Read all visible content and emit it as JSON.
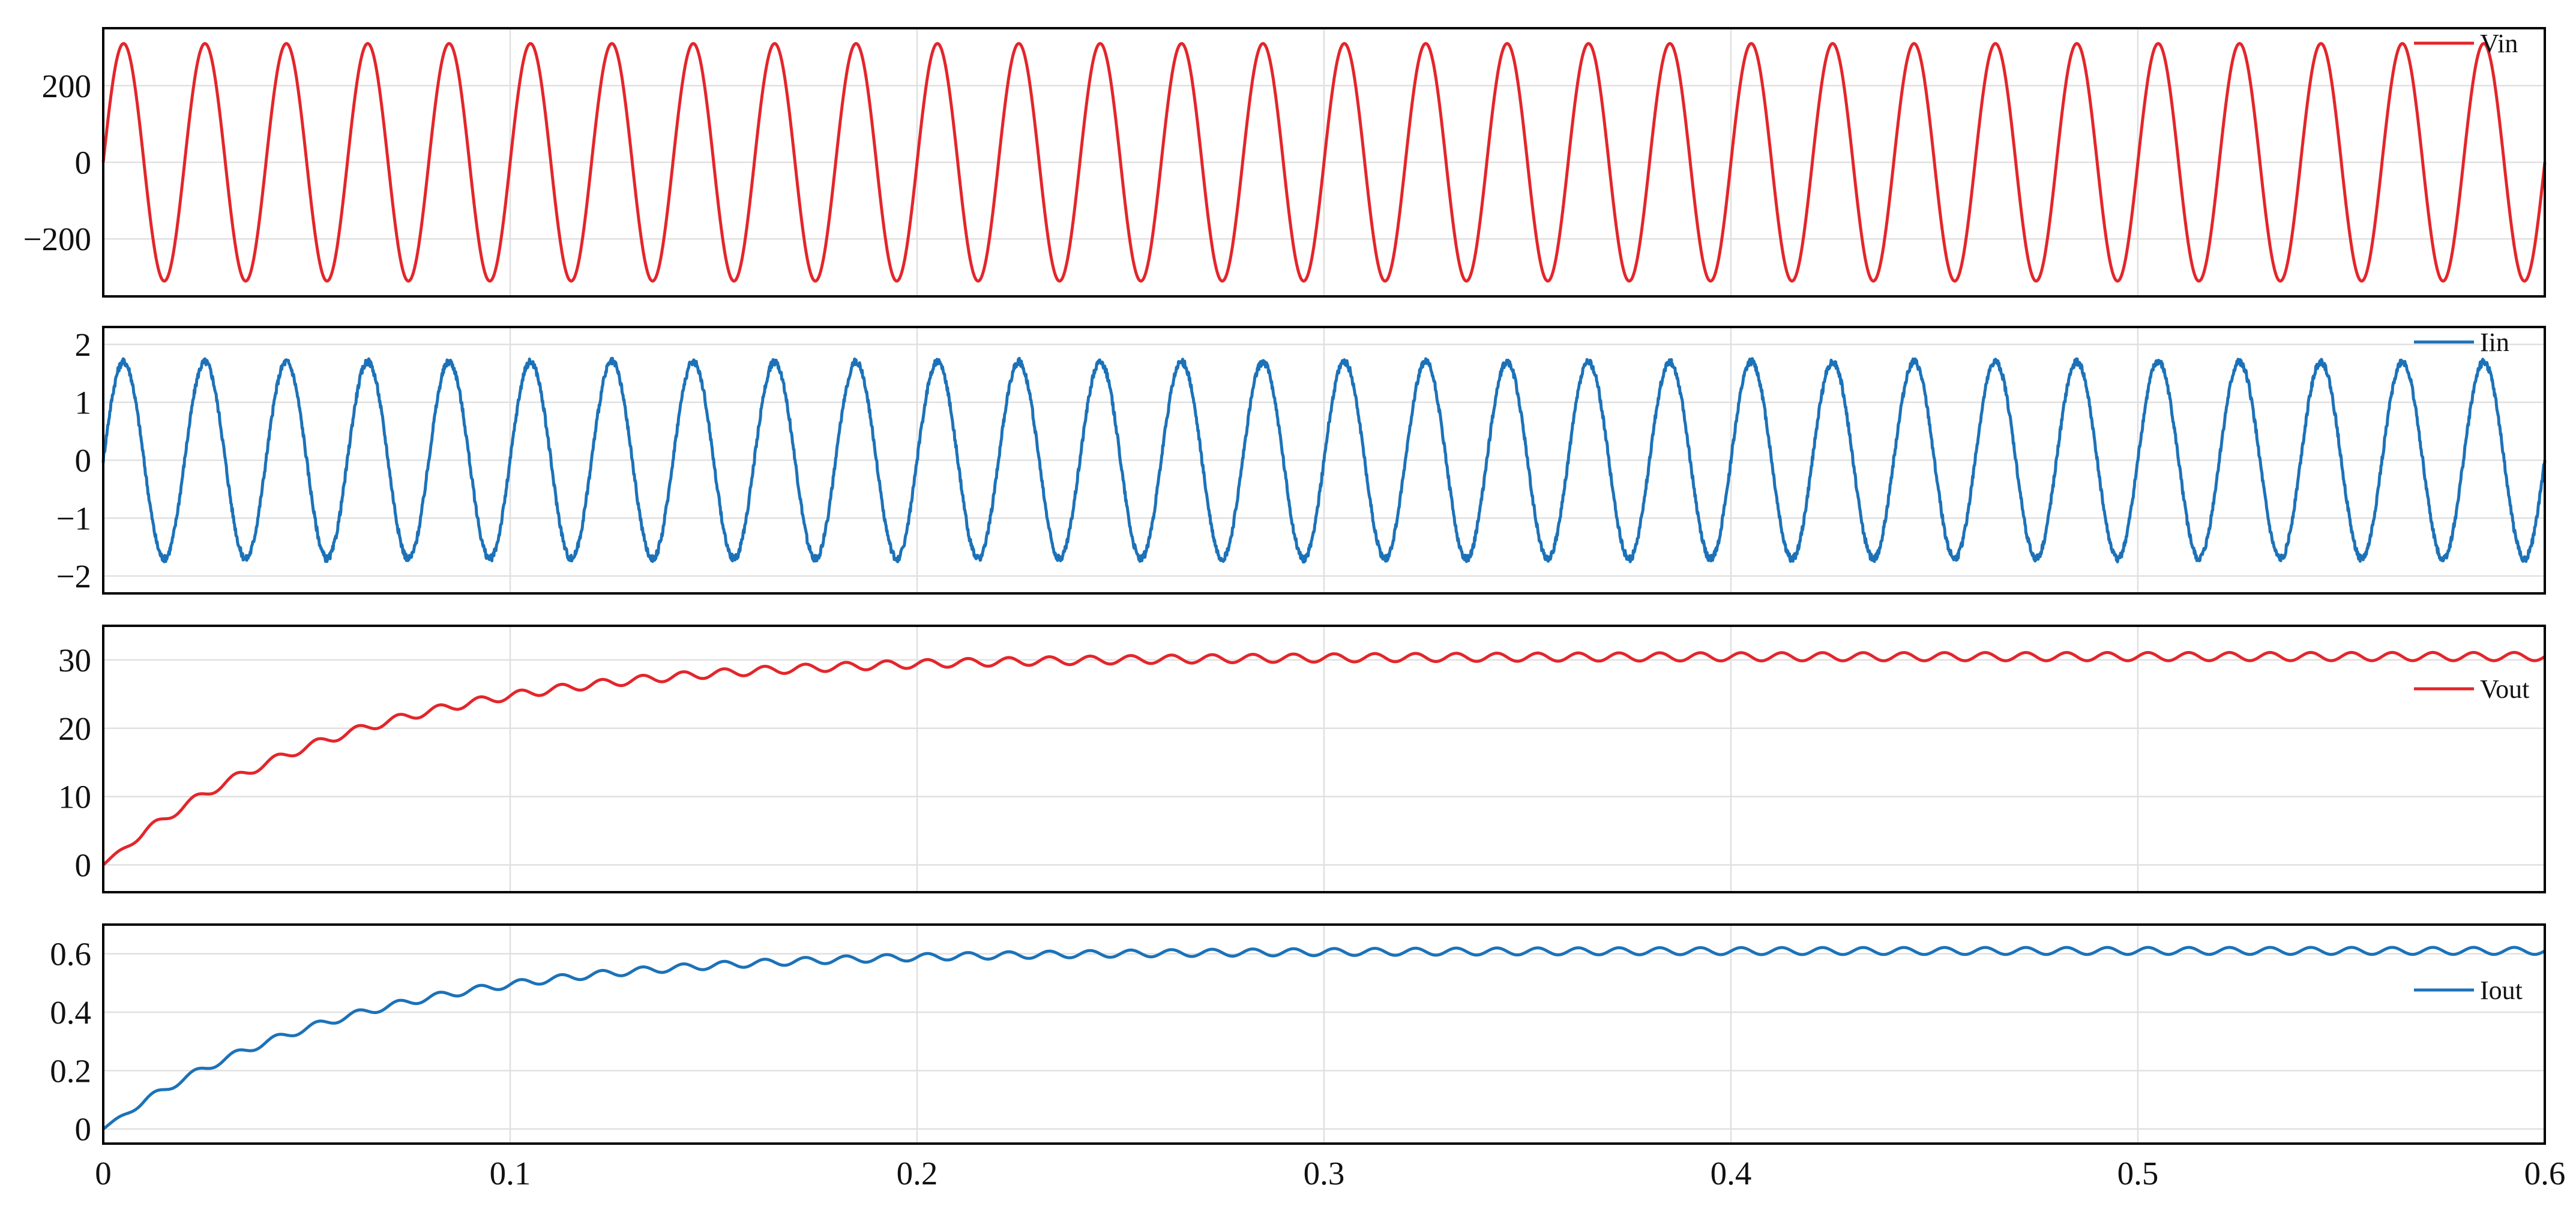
{
  "chart_data": [
    {
      "type": "line",
      "series": [
        {
          "name": "Vin",
          "color": "#e3262b",
          "shape": "sine",
          "amplitude": 310,
          "offset": 0,
          "frequency_hz": 50,
          "noise": 0
        }
      ],
      "xlim": [
        0,
        0.6
      ],
      "ylim": [
        -350,
        350
      ],
      "yticks": [
        200,
        0,
        -200
      ],
      "ytick_labels": [
        "200",
        "0",
        "−200"
      ],
      "legend": "top-right",
      "grid": true
    },
    {
      "type": "line",
      "series": [
        {
          "name": "Iin",
          "color": "#1c72b8",
          "shape": "sine",
          "amplitude": 1.7,
          "offset": 0,
          "frequency_hz": 50,
          "noise": 0.06
        }
      ],
      "xlim": [
        0,
        0.6
      ],
      "ylim": [
        -2.3,
        2.3
      ],
      "yticks": [
        2,
        1,
        0,
        -1,
        -2
      ],
      "ytick_labels": [
        "2",
        "1",
        "0",
        "−1",
        "−2"
      ],
      "legend": "top-right",
      "grid": true
    },
    {
      "type": "line",
      "series": [
        {
          "name": "Vout",
          "color": "#e3262b",
          "shape": "charging",
          "final_value": 30.5,
          "time_constant_s": 0.06,
          "ripple_amplitude": 0.6,
          "ripple_frequency_hz": 100
        }
      ],
      "xlim": [
        0,
        0.6
      ],
      "ylim": [
        -4,
        35
      ],
      "yticks": [
        30,
        20,
        10,
        0
      ],
      "ytick_labels": [
        "30",
        "20",
        "10",
        "0"
      ],
      "legend": "right",
      "grid": true
    },
    {
      "type": "line",
      "series": [
        {
          "name": "Iout",
          "color": "#1c72b8",
          "shape": "charging",
          "final_value": 0.61,
          "time_constant_s": 0.06,
          "ripple_amplitude": 0.012,
          "ripple_frequency_hz": 100
        }
      ],
      "xlim": [
        0,
        0.6
      ],
      "ylim": [
        -0.05,
        0.7
      ],
      "yticks": [
        0.6,
        0.4,
        0.2,
        0
      ],
      "ytick_labels": [
        "0.6",
        "0.4",
        "0.2",
        "0"
      ],
      "legend": "right",
      "grid": true
    }
  ],
  "x_axis": {
    "ticks": [
      0,
      0.1,
      0.2,
      0.3,
      0.4,
      0.5,
      0.6
    ],
    "tick_labels": [
      "0",
      "0.1",
      "0.2",
      "0.3",
      "0.4",
      "0.5",
      "0.6"
    ]
  }
}
